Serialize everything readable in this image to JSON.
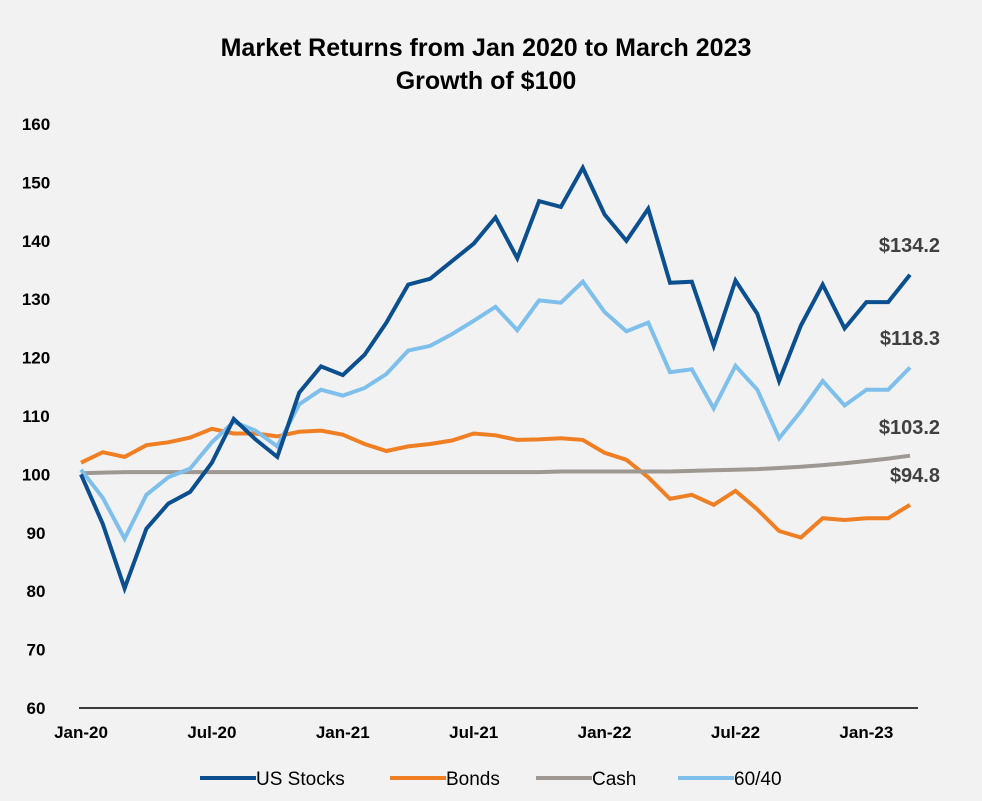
{
  "chart_data": {
    "type": "line",
    "title": "Market Returns from Jan 2020 to March 2023",
    "subtitle": "Growth of $100",
    "xlabel": "",
    "ylabel": "",
    "ylim": [
      60,
      160
    ],
    "yticks": [
      60,
      70,
      80,
      90,
      100,
      110,
      120,
      130,
      140,
      150,
      160
    ],
    "x_start": "Jan-20",
    "x_end": "Mar-23",
    "xticks": [
      {
        "label": "Jan-20",
        "index": 0
      },
      {
        "label": "Jul-20",
        "index": 6
      },
      {
        "label": "Jan-21",
        "index": 12
      },
      {
        "label": "Jul-21",
        "index": 18
      },
      {
        "label": "Jan-22",
        "index": 24
      },
      {
        "label": "Jul-22",
        "index": 30
      },
      {
        "label": "Jan-23",
        "index": 36
      }
    ],
    "grid": false,
    "legend_position": "bottom",
    "series": [
      {
        "name": "US Stocks",
        "color": "#0b4f8f",
        "end_label": "$134.2",
        "values": [
          100.0,
          91.5,
          80.5,
          90.7,
          95.0,
          97.0,
          102.0,
          109.5,
          106.0,
          103.0,
          114.0,
          118.5,
          117.0,
          120.5,
          126.0,
          132.5,
          133.5,
          136.5,
          139.5,
          144.0,
          137.0,
          146.8,
          145.8,
          152.5,
          144.5,
          140.0,
          145.5,
          132.8,
          133.0,
          122.0,
          133.2,
          127.5,
          116.0,
          125.5,
          132.5,
          125.0,
          129.5,
          129.5,
          134.2
        ]
      },
      {
        "name": "Bonds",
        "color": "#f07f24",
        "end_label": "$94.8",
        "values": [
          102.0,
          103.8,
          103.0,
          105.0,
          105.5,
          106.3,
          107.8,
          107.0,
          107.0,
          106.5,
          107.3,
          107.5,
          106.8,
          105.2,
          104.0,
          104.8,
          105.2,
          105.8,
          107.0,
          106.7,
          105.9,
          106.0,
          106.2,
          105.9,
          103.7,
          102.5,
          99.5,
          95.8,
          96.5,
          94.8,
          97.2,
          94.0,
          90.3,
          89.2,
          92.5,
          92.2,
          92.5,
          92.5,
          94.8
        ]
      },
      {
        "name": "Cash",
        "color": "#9e9893",
        "end_label": "$103.2",
        "values": [
          100.2,
          100.3,
          100.4,
          100.4,
          100.4,
          100.4,
          100.4,
          100.4,
          100.4,
          100.4,
          100.4,
          100.4,
          100.4,
          100.4,
          100.4,
          100.4,
          100.4,
          100.4,
          100.4,
          100.4,
          100.4,
          100.4,
          100.5,
          100.5,
          100.5,
          100.5,
          100.5,
          100.5,
          100.6,
          100.7,
          100.8,
          100.9,
          101.1,
          101.3,
          101.6,
          101.9,
          102.3,
          102.7,
          103.2
        ]
      },
      {
        "name": "60/40",
        "color": "#7fbfeb",
        "end_label": "$118.3",
        "values": [
          100.8,
          96.0,
          89.0,
          96.5,
          99.5,
          101.0,
          105.5,
          109.0,
          107.5,
          104.8,
          112.0,
          114.5,
          113.5,
          114.8,
          117.2,
          121.2,
          122.0,
          124.0,
          126.3,
          128.7,
          124.7,
          129.8,
          129.4,
          133.0,
          127.8,
          124.5,
          126.0,
          117.5,
          118.0,
          111.3,
          118.6,
          114.5,
          106.2,
          110.8,
          116.0,
          111.8,
          114.5,
          114.5,
          118.3
        ]
      }
    ]
  }
}
